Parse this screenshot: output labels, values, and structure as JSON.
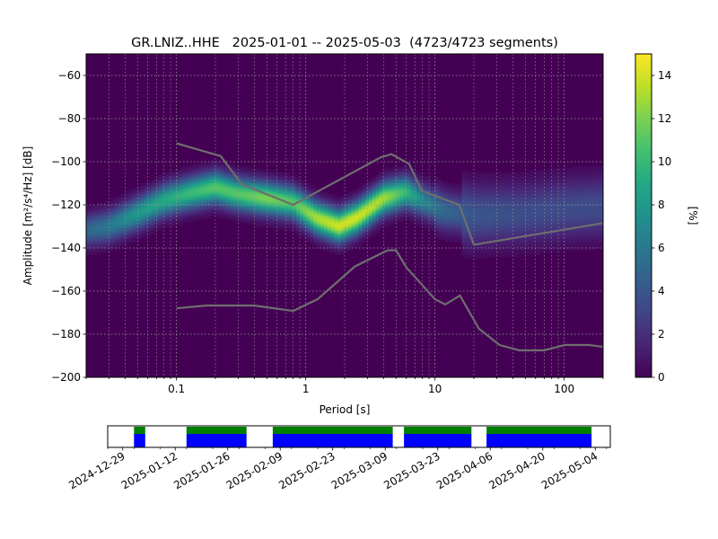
{
  "chart_data": {
    "type": "heatmap",
    "title": "GR.LNIZ..HHE   2025-01-01 -- 2025-05-03  (4723/4723 segments)",
    "xlabel": "Period [s]",
    "ylabel": "Amplitude [m²/s⁴/Hz] [dB]",
    "x_scale": "log",
    "xlim": [
      0.02,
      200
    ],
    "ylim": [
      -200,
      -50
    ],
    "x_ticks": [
      {
        "value": 0.1,
        "label": "0.1"
      },
      {
        "value": 1,
        "label": "1"
      },
      {
        "value": 10,
        "label": "10"
      },
      {
        "value": 100,
        "label": "100"
      }
    ],
    "y_ticks": [
      -60,
      -80,
      -100,
      -120,
      -140,
      -160,
      -180,
      -200
    ],
    "grid": true,
    "colormap": "viridis",
    "colorbar": {
      "label": "[%]",
      "min": 0,
      "max": 15,
      "ticks": [
        0,
        2,
        4,
        6,
        8,
        10,
        12,
        14
      ]
    },
    "ridge": [
      {
        "period": 0.02,
        "db": -132,
        "peak": 5
      },
      {
        "period": 0.03,
        "db": -130,
        "peak": 6
      },
      {
        "period": 0.05,
        "db": -124,
        "peak": 8
      },
      {
        "period": 0.08,
        "db": -118,
        "peak": 9
      },
      {
        "period": 0.12,
        "db": -115,
        "peak": 10
      },
      {
        "period": 0.2,
        "db": -112,
        "peak": 11
      },
      {
        "period": 0.3,
        "db": -115,
        "peak": 11
      },
      {
        "period": 0.5,
        "db": -117,
        "peak": 12
      },
      {
        "period": 0.8,
        "db": -119,
        "peak": 11
      },
      {
        "period": 1.2,
        "db": -126,
        "peak": 13
      },
      {
        "period": 1.8,
        "db": -130,
        "peak": 14
      },
      {
        "period": 2.5,
        "db": -126,
        "peak": 14
      },
      {
        "period": 4,
        "db": -117,
        "peak": 13
      },
      {
        "period": 6,
        "db": -114,
        "peak": 10
      },
      {
        "period": 8,
        "db": -118,
        "peak": 7
      },
      {
        "period": 12,
        "db": -123,
        "peak": 5
      },
      {
        "period": 20,
        "db": -125,
        "peak": 4
      },
      {
        "period": 50,
        "db": -124,
        "peak": 3.5
      },
      {
        "period": 100,
        "db": -122,
        "peak": 3.5
      },
      {
        "period": 200,
        "db": -121,
        "peak": 3.5
      }
    ],
    "nhnm": [
      [
        0.1,
        -91.5
      ],
      [
        0.22,
        -97.4
      ],
      [
        0.32,
        -110.5
      ],
      [
        0.8,
        -120
      ],
      [
        3.8,
        -98
      ],
      [
        4.6,
        -96.5
      ],
      [
        6.3,
        -101
      ],
      [
        7.9,
        -113.5
      ],
      [
        15.4,
        -120
      ],
      [
        20,
        -138.5
      ],
      [
        354.8,
        -126
      ]
    ],
    "nlnm": [
      [
        0.1,
        -168
      ],
      [
        0.17,
        -166.7
      ],
      [
        0.4,
        -166.7
      ],
      [
        0.8,
        -169.2
      ],
      [
        1.24,
        -163.7
      ],
      [
        2.4,
        -148.6
      ],
      [
        4.3,
        -141.1
      ],
      [
        5.0,
        -141.1
      ],
      [
        6.0,
        -149
      ],
      [
        10.0,
        -163.8
      ],
      [
        12.0,
        -166.2
      ],
      [
        15.6,
        -162.1
      ],
      [
        21.9,
        -177.5
      ],
      [
        31.6,
        -185
      ],
      [
        45,
        -187.5
      ],
      [
        70,
        -187.5
      ],
      [
        101,
        -185
      ],
      [
        154,
        -185
      ],
      [
        328,
        -187.5
      ]
    ],
    "coverage": {
      "start": "2024-12-25",
      "end": "2025-05-08",
      "date_ticks": [
        "2024-12-29",
        "2025-01-12",
        "2025-01-26",
        "2025-02-09",
        "2025-02-23",
        "2025-03-09",
        "2025-03-23",
        "2025-04-06",
        "2025-04-20",
        "2025-05-04"
      ],
      "segments": [
        [
          "2025-01-01",
          "2025-01-04"
        ],
        [
          "2025-01-15",
          "2025-01-31"
        ],
        [
          "2025-02-07",
          "2025-03-11"
        ],
        [
          "2025-03-14",
          "2025-04-01"
        ],
        [
          "2025-04-05",
          "2025-05-03"
        ]
      ],
      "colors": {
        "data": "#0000ff",
        "gap_free": "#008000"
      }
    }
  }
}
